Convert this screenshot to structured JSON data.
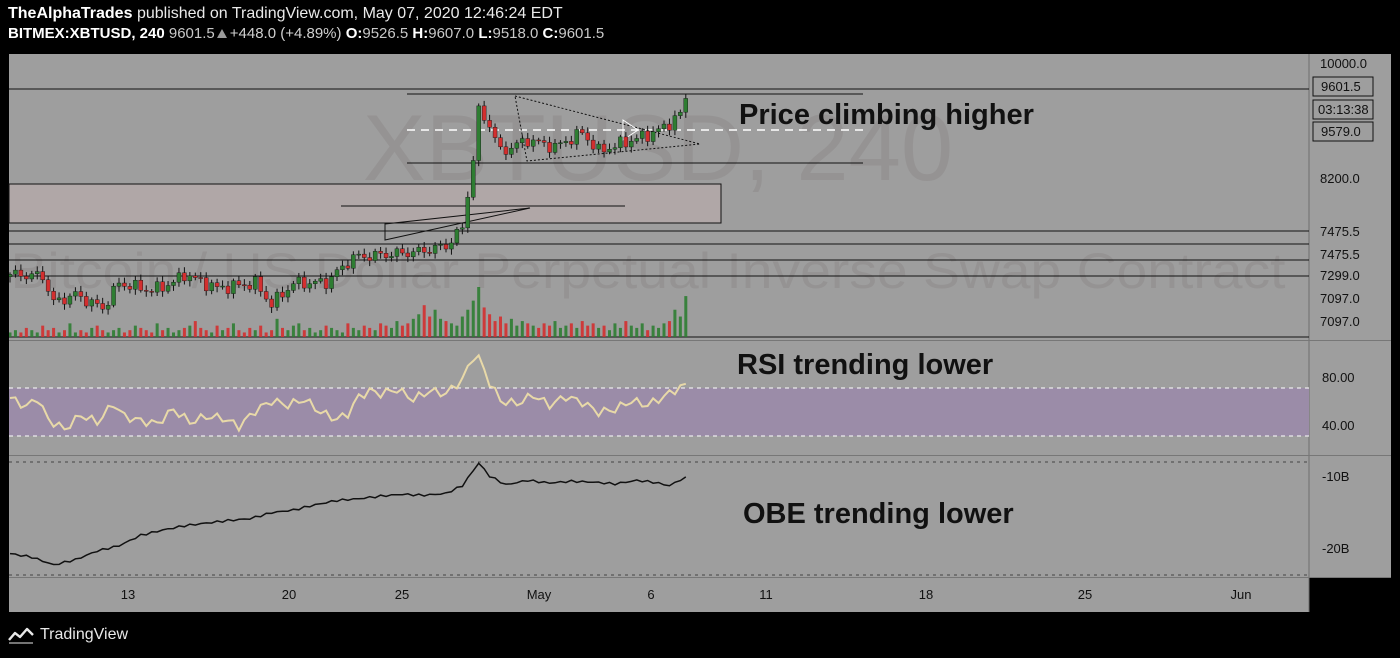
{
  "header": {
    "author": "TheAlphaTrades",
    "published_text": "published on TradingView.com, May 07, 2020 12:46:24 EDT",
    "symbol": "BITMEX:XBTUSD, 240",
    "last": "9601.5",
    "change": "+448.0 (+4.89%)",
    "open_label": "O:",
    "open": "9526.5",
    "high_label": "H:",
    "high": "9607.0",
    "low_label": "L:",
    "low": "9518.0",
    "close_label": "C:",
    "close": "9601.5"
  },
  "watermark": {
    "symbol": "XBTUSD, 240",
    "description": "Bitcoin / US Dollar Perpetual Inverse Swap Contract"
  },
  "annotations": {
    "price": "Price climbing higher",
    "rsi": "RSI trending lower",
    "obe": "OBE trending lower"
  },
  "footer": {
    "brand": "TradingView",
    "logo_icon": "tradingview-logo-icon"
  },
  "colors": {
    "up": "#2e7d32",
    "down": "#d32f2f",
    "pane_bg": "#9e9e9e",
    "rsi_band": "#9b8ca8",
    "rsi_line": "#e8d9a8",
    "obv_line": "#111111"
  },
  "chart_data": [
    {
      "type": "candlestick",
      "pane": "price",
      "symbol": "BITMEX:XBTUSD",
      "timeframe": "240",
      "price_scale_labels": [
        "10000.0",
        "9601.5",
        "03:13:38",
        "9579.0",
        "8200.0",
        "7475.5",
        "7475.5",
        "7299.0",
        "7097.0",
        "7097.0"
      ],
      "x_tick_labels": [
        "13",
        "20",
        "25",
        "May",
        "6",
        "11",
        "18",
        "25",
        "Jun"
      ],
      "ylim": [
        6620,
        10150
      ],
      "path": [
        [
          0,
          7430
        ],
        [
          6,
          7410
        ],
        [
          8,
          7080
        ],
        [
          12,
          7180
        ],
        [
          17,
          7010
        ],
        [
          20,
          7320
        ],
        [
          26,
          7230
        ],
        [
          30,
          7330
        ],
        [
          32,
          7430
        ],
        [
          38,
          7260
        ],
        [
          45,
          7320
        ],
        [
          48,
          7060
        ],
        [
          52,
          7320
        ],
        [
          58,
          7330
        ],
        [
          63,
          7640
        ],
        [
          70,
          7680
        ],
        [
          75,
          7710
        ],
        [
          80,
          7780
        ],
        [
          83,
          8000
        ],
        [
          85,
          8850
        ],
        [
          86,
          9440
        ],
        [
          88,
          9280
        ],
        [
          90,
          8940
        ],
        [
          95,
          9090
        ],
        [
          100,
          9000
        ],
        [
          105,
          9180
        ],
        [
          108,
          8950
        ],
        [
          112,
          9040
        ],
        [
          117,
          9150
        ],
        [
          120,
          9240
        ],
        [
          123,
          9410
        ],
        [
          124,
          9601.5
        ]
      ],
      "volume_relative": [
        2,
        3,
        2,
        4,
        3,
        2,
        5,
        3,
        4,
        2,
        3,
        6,
        2,
        3,
        2,
        4,
        5,
        3,
        2,
        3,
        4,
        2,
        3,
        5,
        4,
        3,
        2,
        6,
        3,
        4,
        2,
        3,
        4,
        5,
        7,
        4,
        3,
        2,
        5,
        3,
        4,
        6,
        3,
        2,
        4,
        3,
        5,
        2,
        3,
        8,
        4,
        3,
        5,
        6,
        3,
        4,
        2,
        3,
        5,
        4,
        3,
        2,
        6,
        4,
        3,
        5,
        4,
        3,
        6,
        5,
        4,
        7,
        5,
        6,
        8,
        10,
        14,
        9,
        12,
        8,
        7,
        6,
        5,
        9,
        12,
        16,
        22,
        13,
        10,
        7,
        9,
        6,
        8,
        5,
        7,
        6,
        5,
        4,
        6,
        5,
        7,
        4,
        5,
        6,
        4,
        7,
        5,
        6,
        4,
        5,
        3,
        6,
        4,
        7,
        5,
        4,
        6,
        3,
        5,
        4,
        6,
        7,
        12,
        9,
        18
      ]
    },
    {
      "type": "line",
      "pane": "rsi",
      "name": "RSI",
      "y_tick_labels": [
        "80.00",
        "40.00"
      ],
      "band": [
        30,
        70
      ],
      "ylim": [
        20,
        100
      ],
      "points": [
        [
          0,
          60
        ],
        [
          3,
          54
        ],
        [
          5,
          60
        ],
        [
          7,
          45
        ],
        [
          10,
          38
        ],
        [
          13,
          48
        ],
        [
          16,
          43
        ],
        [
          19,
          56
        ],
        [
          21,
          47
        ],
        [
          24,
          44
        ],
        [
          27,
          42
        ],
        [
          30,
          52
        ],
        [
          33,
          43
        ],
        [
          36,
          47
        ],
        [
          39,
          46
        ],
        [
          42,
          40
        ],
        [
          45,
          51
        ],
        [
          48,
          58
        ],
        [
          51,
          55
        ],
        [
          54,
          59
        ],
        [
          57,
          50
        ],
        [
          60,
          45
        ],
        [
          62,
          49
        ],
        [
          64,
          61
        ],
        [
          66,
          65
        ],
        [
          68,
          63
        ],
        [
          71,
          66
        ],
        [
          74,
          59
        ],
        [
          77,
          65
        ],
        [
          80,
          63
        ],
        [
          83,
          73
        ],
        [
          85,
          89
        ],
        [
          86,
          88
        ],
        [
          88,
          71
        ],
        [
          90,
          58
        ],
        [
          93,
          56
        ],
        [
          96,
          62
        ],
        [
          99,
          55
        ],
        [
          102,
          61
        ],
        [
          105,
          57
        ],
        [
          108,
          50
        ],
        [
          111,
          52
        ],
        [
          114,
          58
        ],
        [
          117,
          55
        ],
        [
          120,
          61
        ],
        [
          124,
          70
        ]
      ]
    },
    {
      "type": "line",
      "pane": "obv",
      "name": "OBV",
      "y_tick_labels": [
        "-10B",
        "-20B"
      ],
      "ylim": [
        -23,
        -9
      ],
      "points": [
        [
          0,
          -20.2
        ],
        [
          4,
          -20.6
        ],
        [
          8,
          -21.5
        ],
        [
          12,
          -20.9
        ],
        [
          16,
          -19.9
        ],
        [
          20,
          -19.3
        ],
        [
          24,
          -18.1
        ],
        [
          28,
          -17.5
        ],
        [
          32,
          -17.0
        ],
        [
          36,
          -16.7
        ],
        [
          40,
          -16.4
        ],
        [
          44,
          -16.2
        ],
        [
          48,
          -15.5
        ],
        [
          52,
          -15.2
        ],
        [
          56,
          -14.6
        ],
        [
          60,
          -14.1
        ],
        [
          64,
          -13.9
        ],
        [
          68,
          -13.6
        ],
        [
          72,
          -13.4
        ],
        [
          76,
          -13.5
        ],
        [
          80,
          -13.3
        ],
        [
          83,
          -12.4
        ],
        [
          86,
          -9.8
        ],
        [
          88,
          -11.3
        ],
        [
          91,
          -12.3
        ],
        [
          95,
          -11.8
        ],
        [
          99,
          -12.1
        ],
        [
          103,
          -11.9
        ],
        [
          107,
          -12.0
        ],
        [
          111,
          -12.2
        ],
        [
          115,
          -11.8
        ],
        [
          118,
          -12.0
        ],
        [
          121,
          -12.4
        ],
        [
          124,
          -11.4
        ]
      ]
    }
  ]
}
